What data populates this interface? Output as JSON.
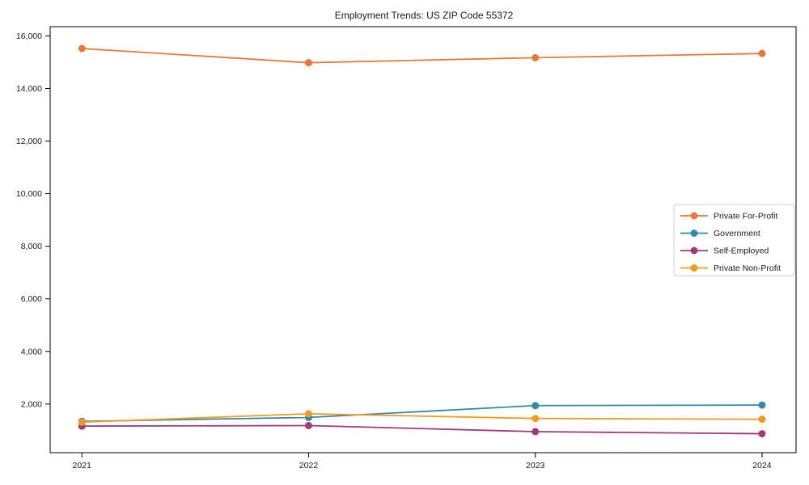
{
  "figure": {
    "title": "Employment Trends: US ZIP Code 55372"
  },
  "colors": {
    "axis": "#000000",
    "tick_label": "#1a1a1a",
    "legend_border": "#cccccc",
    "background": "#ffffff"
  },
  "chart_data": {
    "type": "line",
    "title": "Employment Trends: US ZIP Code 55372",
    "x": [
      2021,
      2022,
      2023,
      2024
    ],
    "series": [
      {
        "name": "Private For-Profit",
        "color": "#e8773c",
        "values": [
          15520,
          14980,
          15170,
          15330
        ]
      },
      {
        "name": "Government",
        "color": "#2f8ba8",
        "values": [
          1340,
          1490,
          1940,
          1960
        ]
      },
      {
        "name": "Self-Employed",
        "color": "#a23a79",
        "values": [
          1160,
          1180,
          950,
          870
        ]
      },
      {
        "name": "Private Non-Profit",
        "color": "#f09c1e",
        "values": [
          1310,
          1630,
          1450,
          1420
        ]
      }
    ],
    "xlabel": "",
    "ylabel": "",
    "xlim": [
      2020.86,
      2024.15
    ],
    "ylim": [
      150,
      16350
    ],
    "yticks": [
      2000,
      4000,
      6000,
      8000,
      10000,
      12000,
      14000,
      16000
    ],
    "ytick_labels": [
      "2,000",
      "4,000",
      "6,000",
      "8,000",
      "10,000",
      "12,000",
      "14,000",
      "16,000"
    ],
    "xticks": [
      2021,
      2022,
      2023,
      2024
    ],
    "xtick_labels": [
      "2021",
      "2022",
      "2023",
      "2024"
    ],
    "grid": false,
    "legend_position": "center-right",
    "marker": "circle"
  }
}
